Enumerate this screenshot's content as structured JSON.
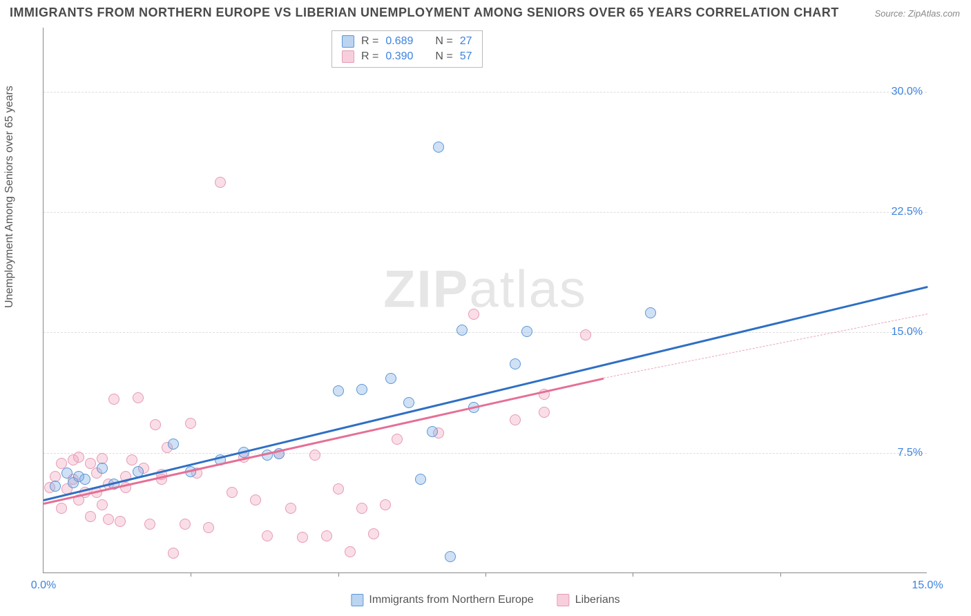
{
  "title": "IMMIGRANTS FROM NORTHERN EUROPE VS LIBERIAN UNEMPLOYMENT AMONG SENIORS OVER 65 YEARS CORRELATION CHART",
  "source": "Source: ZipAtlas.com",
  "y_label": "Unemployment Among Seniors over 65 years",
  "watermark_bold": "ZIP",
  "watermark_light": "atlas",
  "chart": {
    "type": "scatter",
    "xlim": [
      0,
      15
    ],
    "ylim": [
      0,
      34
    ],
    "xtick_labels": [
      "0.0%",
      "15.0%"
    ],
    "xtick_positions": [
      0,
      15
    ],
    "xtick_minor": [
      2.5,
      5.0,
      7.5,
      10.0,
      12.5
    ],
    "ytick_labels": [
      "7.5%",
      "15.0%",
      "22.5%",
      "30.0%"
    ],
    "ytick_positions": [
      7.5,
      15.0,
      22.5,
      30.0
    ],
    "grid_color": "#dddddd",
    "background_color": "#ffffff",
    "axis_color": "#888888",
    "series_blue": {
      "name": "Immigrants from Northern Europe",
      "color": "#5b96d6",
      "fill": "rgba(120,170,225,0.35)",
      "r_value": "0.689",
      "n_value": "27",
      "points": [
        [
          0.2,
          5.4
        ],
        [
          0.4,
          6.2
        ],
        [
          0.5,
          5.6
        ],
        [
          0.6,
          6.0
        ],
        [
          0.7,
          5.8
        ],
        [
          1.0,
          6.5
        ],
        [
          1.2,
          5.5
        ],
        [
          1.6,
          6.3
        ],
        [
          2.2,
          8.0
        ],
        [
          2.5,
          6.3
        ],
        [
          3.0,
          7.0
        ],
        [
          3.4,
          7.5
        ],
        [
          3.8,
          7.3
        ],
        [
          4.0,
          7.4
        ],
        [
          5.0,
          11.3
        ],
        [
          5.4,
          11.4
        ],
        [
          5.9,
          12.1
        ],
        [
          6.2,
          10.6
        ],
        [
          6.4,
          5.8
        ],
        [
          6.6,
          8.8
        ],
        [
          6.9,
          1.0
        ],
        [
          7.1,
          15.1
        ],
        [
          7.3,
          10.3
        ],
        [
          8.0,
          13.0
        ],
        [
          8.2,
          15.0
        ],
        [
          10.3,
          16.2
        ],
        [
          6.7,
          26.5
        ]
      ],
      "regression": {
        "x1": 0,
        "y1": 4.6,
        "x2": 15.0,
        "y2": 17.9
      }
    },
    "series_pink": {
      "name": "Liberians",
      "color": "#e56f95",
      "fill": "rgba(240,160,185,0.35)",
      "r_value": "0.390",
      "n_value": "57",
      "points": [
        [
          0.1,
          5.3
        ],
        [
          0.2,
          6.0
        ],
        [
          0.3,
          4.0
        ],
        [
          0.3,
          6.8
        ],
        [
          0.4,
          5.2
        ],
        [
          0.5,
          7.0
        ],
        [
          0.5,
          5.8
        ],
        [
          0.6,
          7.2
        ],
        [
          0.7,
          5.0
        ],
        [
          0.8,
          6.8
        ],
        [
          0.8,
          3.5
        ],
        [
          0.9,
          6.2
        ],
        [
          1.0,
          4.2
        ],
        [
          1.0,
          7.1
        ],
        [
          1.1,
          5.5
        ],
        [
          1.2,
          10.8
        ],
        [
          1.3,
          3.2
        ],
        [
          1.4,
          6.0
        ],
        [
          1.5,
          7.0
        ],
        [
          1.6,
          10.9
        ],
        [
          1.7,
          6.5
        ],
        [
          1.8,
          3.0
        ],
        [
          1.9,
          9.2
        ],
        [
          2.0,
          5.8
        ],
        [
          2.2,
          1.2
        ],
        [
          2.4,
          3.0
        ],
        [
          2.5,
          9.3
        ],
        [
          2.6,
          6.2
        ],
        [
          2.8,
          2.8
        ],
        [
          3.0,
          24.3
        ],
        [
          3.2,
          5.0
        ],
        [
          3.4,
          7.2
        ],
        [
          3.6,
          4.5
        ],
        [
          3.8,
          2.3
        ],
        [
          4.0,
          7.4
        ],
        [
          4.2,
          4.0
        ],
        [
          4.4,
          2.2
        ],
        [
          4.6,
          7.3
        ],
        [
          4.8,
          2.3
        ],
        [
          5.0,
          5.2
        ],
        [
          5.2,
          1.3
        ],
        [
          5.4,
          4.0
        ],
        [
          5.6,
          2.4
        ],
        [
          5.8,
          4.2
        ],
        [
          6.0,
          8.3
        ],
        [
          6.7,
          8.7
        ],
        [
          7.3,
          16.1
        ],
        [
          8.5,
          11.1
        ],
        [
          8.0,
          9.5
        ],
        [
          9.2,
          14.8
        ],
        [
          8.5,
          10.0
        ],
        [
          1.1,
          3.3
        ],
        [
          1.4,
          5.3
        ],
        [
          0.6,
          4.5
        ],
        [
          0.9,
          5.0
        ],
        [
          2.1,
          7.8
        ],
        [
          2.0,
          6.1
        ]
      ],
      "regression_solid": {
        "x1": 0,
        "y1": 4.4,
        "x2": 9.5,
        "y2": 12.2
      },
      "regression_dashed": {
        "x1": 9.5,
        "y1": 12.2,
        "x2": 15.0,
        "y2": 16.2
      }
    }
  },
  "legend_top": {
    "r_label": "R =",
    "n_label": "N ="
  },
  "legend_bottom": {
    "series1": "Immigrants from Northern Europe",
    "series2": "Liberians"
  }
}
